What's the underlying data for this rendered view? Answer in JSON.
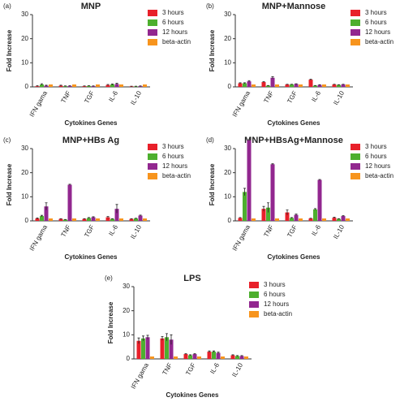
{
  "chart_data": [
    {
      "type": "bar",
      "panel": "(a)",
      "title": "MNP",
      "x_label": "Cytokines Genes",
      "y_label": "Fold Increase",
      "categories": [
        "IFN gama",
        "TNF",
        "TGF",
        "IL-6",
        "IL-10"
      ],
      "ylim": [
        0,
        30
      ],
      "yticks": [
        0,
        10,
        20,
        30
      ],
      "series": [
        {
          "name": "3 hours",
          "color": "#e8202a",
          "values": [
            0.3,
            0.5,
            0.3,
            0.8,
            0.2
          ],
          "errors": [
            0.2,
            0.2,
            0.1,
            0.2,
            0.1
          ]
        },
        {
          "name": "6 hours",
          "color": "#4daf2e",
          "values": [
            1.0,
            0.3,
            0.4,
            1.0,
            0.2
          ],
          "errors": [
            0.3,
            0.1,
            0.1,
            0.2,
            0.1
          ]
        },
        {
          "name": "12 hours",
          "color": "#92278f",
          "values": [
            0.5,
            0.4,
            0.3,
            1.2,
            0.3
          ],
          "errors": [
            0.2,
            0.1,
            0.1,
            0.3,
            0.1
          ]
        },
        {
          "name": "beta-actin",
          "color": "#f7941d",
          "values": [
            1,
            1,
            1,
            1,
            1
          ],
          "errors": [
            0,
            0,
            0,
            0,
            0
          ]
        }
      ]
    },
    {
      "type": "bar",
      "panel": "(b)",
      "title": "MNP+Mannose",
      "x_label": "Cytokines Genes",
      "y_label": "Fold Increase",
      "categories": [
        "IFN gama",
        "TNF",
        "TGF",
        "IL-6",
        "IL-10"
      ],
      "ylim": [
        0,
        30
      ],
      "yticks": [
        0,
        10,
        20,
        30
      ],
      "series": [
        {
          "name": "3 hours",
          "color": "#e8202a",
          "values": [
            1.5,
            2.0,
            1.0,
            3.0,
            1.0
          ],
          "errors": [
            0.2,
            0.2,
            0.1,
            0.2,
            0.1
          ]
        },
        {
          "name": "6 hours",
          "color": "#4daf2e",
          "values": [
            1.5,
            0.5,
            1.0,
            0.5,
            0.8
          ],
          "errors": [
            0.2,
            0.1,
            0.1,
            0.1,
            0.1
          ]
        },
        {
          "name": "12 hours",
          "color": "#92278f",
          "values": [
            2.3,
            3.8,
            1.2,
            0.8,
            1.0
          ],
          "errors": [
            0.3,
            0.4,
            0.1,
            0.1,
            0.1
          ]
        },
        {
          "name": "beta-actin",
          "color": "#f7941d",
          "values": [
            1,
            1,
            1,
            1,
            1
          ],
          "errors": [
            0,
            0,
            0,
            0,
            0
          ]
        }
      ]
    },
    {
      "type": "bar",
      "panel": "(c)",
      "title": "MNP+HBs Ag",
      "x_label": "Cytokines Genes",
      "y_label": "Fold Increase",
      "categories": [
        "IFN gama",
        "TNF",
        "TGF",
        "IL-6",
        "IL-10"
      ],
      "ylim": [
        0,
        30
      ],
      "yticks": [
        0,
        10,
        20,
        30
      ],
      "series": [
        {
          "name": "3 hours",
          "color": "#e8202a",
          "values": [
            1.0,
            0.8,
            0.8,
            1.5,
            0.8
          ],
          "errors": [
            0.2,
            0.1,
            0.1,
            0.3,
            0.1
          ]
        },
        {
          "name": "6 hours",
          "color": "#4daf2e",
          "values": [
            2.0,
            0.5,
            1.2,
            0.8,
            1.0
          ],
          "errors": [
            0.3,
            0.1,
            0.2,
            0.1,
            0.1
          ]
        },
        {
          "name": "12 hours",
          "color": "#92278f",
          "values": [
            6.0,
            15.0,
            1.5,
            5.0,
            2.2
          ],
          "errors": [
            1.5,
            0.2,
            0.2,
            1.8,
            0.2
          ]
        },
        {
          "name": "beta-actin",
          "color": "#f7941d",
          "values": [
            1,
            1,
            1,
            1,
            1
          ],
          "errors": [
            0,
            0,
            0,
            0,
            0
          ]
        }
      ]
    },
    {
      "type": "bar",
      "panel": "(d)",
      "title": "MNP+HBsAg+Mannose",
      "x_label": "Cytokines Genes",
      "y_label": "Fold Increase",
      "categories": [
        "IFN gama",
        "TNF",
        "TGF",
        "IL-6",
        "IL-10"
      ],
      "ylim": [
        0,
        30
      ],
      "yticks": [
        0,
        10,
        20,
        30
      ],
      "series": [
        {
          "name": "3 hours",
          "color": "#e8202a",
          "values": [
            1.2,
            5.0,
            3.5,
            1.0,
            1.3
          ],
          "errors": [
            0.2,
            1.0,
            1.0,
            0.1,
            0.2
          ]
        },
        {
          "name": "6 hours",
          "color": "#4daf2e",
          "values": [
            12.0,
            5.5,
            1.2,
            4.8,
            0.8
          ],
          "errors": [
            1.5,
            2.0,
            0.2,
            0.3,
            0.1
          ]
        },
        {
          "name": "12 hours",
          "color": "#92278f",
          "values": [
            33.5,
            23.5,
            2.5,
            17.0,
            2.0
          ],
          "errors": [
            0.2,
            0.2,
            0.3,
            0.2,
            0.2
          ]
        },
        {
          "name": "beta-actin",
          "color": "#f7941d",
          "values": [
            1,
            1,
            1,
            1,
            1
          ],
          "errors": [
            0,
            0,
            0,
            0,
            0
          ]
        }
      ]
    },
    {
      "type": "bar",
      "panel": "(e)",
      "title": "LPS",
      "x_label": "Cytokines Genes",
      "y_label": "Fold Increase",
      "categories": [
        "IFN gama",
        "TNF",
        "TGF",
        "IL-6",
        "IL-10"
      ],
      "ylim": [
        0,
        30
      ],
      "yticks": [
        0,
        10,
        20,
        30
      ],
      "series": [
        {
          "name": "3 hours",
          "color": "#e8202a",
          "values": [
            7.5,
            8.5,
            2.0,
            3.0,
            1.5
          ],
          "errors": [
            1.2,
            0.8,
            0.2,
            0.3,
            0.2
          ]
        },
        {
          "name": "6 hours",
          "color": "#4daf2e",
          "values": [
            8.5,
            9.0,
            1.5,
            3.0,
            1.2
          ],
          "errors": [
            1.0,
            1.5,
            0.2,
            0.3,
            0.2
          ]
        },
        {
          "name": "12 hours",
          "color": "#92278f",
          "values": [
            9.0,
            8.0,
            2.0,
            2.5,
            1.2
          ],
          "errors": [
            0.8,
            2.0,
            0.2,
            0.3,
            0.2
          ]
        },
        {
          "name": "beta-actin",
          "color": "#f7941d",
          "values": [
            1,
            1,
            1,
            1,
            1
          ],
          "errors": [
            0,
            0,
            0,
            0,
            0
          ]
        }
      ]
    }
  ]
}
